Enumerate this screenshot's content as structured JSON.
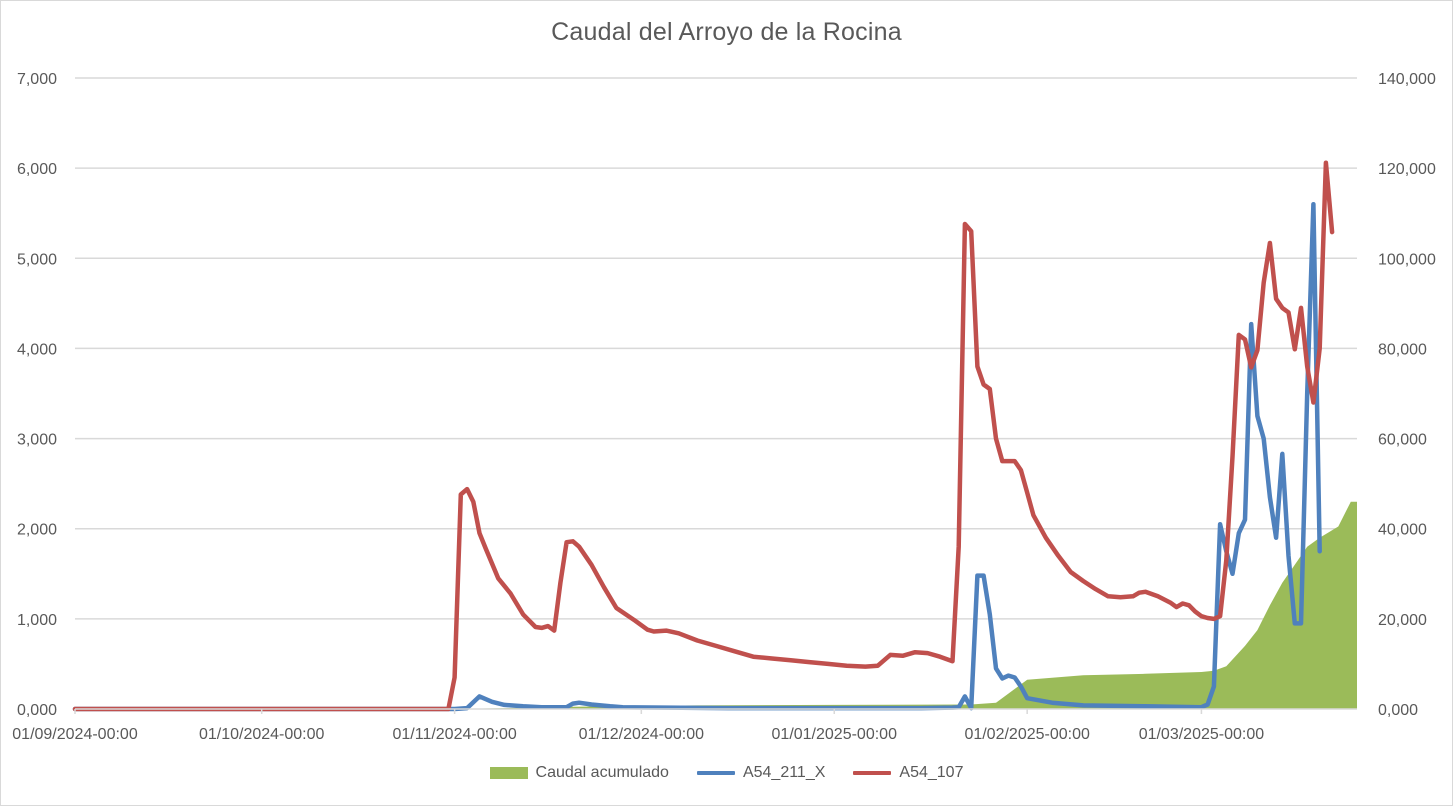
{
  "chart_data": {
    "type": "line",
    "title": "Caudal del Arroyo de la Rocina",
    "xlabel": "",
    "ylabel": "",
    "x_axis": {
      "start": "2024-09-01",
      "end": "2025-03-26",
      "tick_labels": [
        "01/09/2024-00:00",
        "01/10/2024-00:00",
        "01/11/2024-00:00",
        "01/12/2024-00:00",
        "01/01/2025-00:00",
        "01/02/2025-00:00",
        "01/03/2025-00:00"
      ]
    },
    "y_left": {
      "ylim": [
        0,
        7000
      ],
      "tick_labels": [
        "0,000",
        "1,000",
        "2,000",
        "3,000",
        "4,000",
        "5,000",
        "6,000",
        "7,000"
      ]
    },
    "y_right": {
      "ylim": [
        0,
        140000
      ],
      "tick_labels": [
        "0,000",
        "20,000",
        "40,000",
        "60,000",
        "80,000",
        "100,000",
        "120,000",
        "140,000"
      ]
    },
    "grid": true,
    "legend_position": "bottom",
    "series": [
      {
        "name": "Caudal acumulado",
        "kind": "area",
        "axis": "right",
        "color": "#9bbb59",
        "points": [
          [
            "2024-09-01",
            0
          ],
          [
            "2024-11-01",
            0
          ],
          [
            "2024-11-20",
            500
          ],
          [
            "2024-12-10",
            800
          ],
          [
            "2025-01-01",
            900
          ],
          [
            "2025-01-23",
            1000
          ],
          [
            "2025-01-27",
            1400
          ],
          [
            "2025-02-01",
            6500
          ],
          [
            "2025-02-10",
            7500
          ],
          [
            "2025-02-20",
            7800
          ],
          [
            "2025-03-01",
            8200
          ],
          [
            "2025-03-03",
            8500
          ],
          [
            "2025-03-05",
            9500
          ],
          [
            "2025-03-08",
            14000
          ],
          [
            "2025-03-10",
            17500
          ],
          [
            "2025-03-12",
            23000
          ],
          [
            "2025-03-14",
            28000
          ],
          [
            "2025-03-16",
            32000
          ],
          [
            "2025-03-18",
            36000
          ],
          [
            "2025-03-20",
            38000
          ],
          [
            "2025-03-23",
            40500
          ],
          [
            "2025-03-25",
            46000
          ],
          [
            "2025-03-26",
            46000
          ]
        ]
      },
      {
        "name": "A54_211_X",
        "kind": "line",
        "axis": "left",
        "color": "#4f81bd",
        "points": [
          [
            "2024-09-01",
            0
          ],
          [
            "2024-11-01",
            0
          ],
          [
            "2024-11-03",
            10
          ],
          [
            "2024-11-05",
            140
          ],
          [
            "2024-11-07",
            80
          ],
          [
            "2024-11-09",
            45
          ],
          [
            "2024-11-12",
            30
          ],
          [
            "2024-11-15",
            20
          ],
          [
            "2024-11-17",
            20
          ],
          [
            "2024-11-19",
            20
          ],
          [
            "2024-11-20",
            60
          ],
          [
            "2024-11-21",
            70
          ],
          [
            "2024-11-23",
            50
          ],
          [
            "2024-11-26",
            30
          ],
          [
            "2024-11-28",
            20
          ],
          [
            "2024-12-05",
            15
          ],
          [
            "2024-12-15",
            10
          ],
          [
            "2025-01-01",
            10
          ],
          [
            "2025-01-15",
            10
          ],
          [
            "2025-01-20",
            15
          ],
          [
            "2025-01-21",
            20
          ],
          [
            "2025-01-22",
            140
          ],
          [
            "2025-01-23",
            10
          ],
          [
            "2025-01-24",
            1480
          ],
          [
            "2025-01-25",
            1480
          ],
          [
            "2025-01-26",
            1050
          ],
          [
            "2025-01-27",
            450
          ],
          [
            "2025-01-28",
            340
          ],
          [
            "2025-01-29",
            370
          ],
          [
            "2025-01-30",
            350
          ],
          [
            "2025-01-31",
            250
          ],
          [
            "2025-02-01",
            120
          ],
          [
            "2025-02-05",
            70
          ],
          [
            "2025-02-10",
            40
          ],
          [
            "2025-02-20",
            30
          ],
          [
            "2025-03-01",
            20
          ],
          [
            "2025-03-02",
            50
          ],
          [
            "2025-03-03",
            250
          ],
          [
            "2025-03-04",
            2050
          ],
          [
            "2025-03-05",
            1750
          ],
          [
            "2025-03-06",
            1500
          ],
          [
            "2025-03-07",
            1950
          ],
          [
            "2025-03-08",
            2100
          ],
          [
            "2025-03-09",
            4270
          ],
          [
            "2025-03-10",
            3250
          ],
          [
            "2025-03-11",
            3000
          ],
          [
            "2025-03-12",
            2350
          ],
          [
            "2025-03-13",
            1900
          ],
          [
            "2025-03-14",
            2830
          ],
          [
            "2025-03-15",
            1700
          ],
          [
            "2025-03-16",
            950
          ],
          [
            "2025-03-17",
            950
          ],
          [
            "2025-03-18",
            3500
          ],
          [
            "2025-03-19",
            5600
          ],
          [
            "2025-03-20",
            1750
          ]
        ]
      },
      {
        "name": "A54_107",
        "kind": "line",
        "axis": "left",
        "color": "#c0504d",
        "points": [
          [
            "2024-09-01",
            0
          ],
          [
            "2024-10-31",
            0
          ],
          [
            "2024-11-01",
            350
          ],
          [
            "2024-11-02",
            2380
          ],
          [
            "2024-11-03",
            2440
          ],
          [
            "2024-11-04",
            2300
          ],
          [
            "2024-11-05",
            1950
          ],
          [
            "2024-11-06",
            1780
          ],
          [
            "2024-11-08",
            1450
          ],
          [
            "2024-11-10",
            1280
          ],
          [
            "2024-11-12",
            1050
          ],
          [
            "2024-11-14",
            910
          ],
          [
            "2024-11-15",
            900
          ],
          [
            "2024-11-16",
            920
          ],
          [
            "2024-11-17",
            870
          ],
          [
            "2024-11-18",
            1400
          ],
          [
            "2024-11-19",
            1850
          ],
          [
            "2024-11-20",
            1860
          ],
          [
            "2024-11-21",
            1800
          ],
          [
            "2024-11-23",
            1600
          ],
          [
            "2024-11-25",
            1350
          ],
          [
            "2024-11-27",
            1120
          ],
          [
            "2024-11-30",
            980
          ],
          [
            "2024-12-02",
            880
          ],
          [
            "2024-12-03",
            860
          ],
          [
            "2024-12-05",
            870
          ],
          [
            "2024-12-07",
            840
          ],
          [
            "2024-12-10",
            760
          ],
          [
            "2024-12-13",
            700
          ],
          [
            "2024-12-16",
            640
          ],
          [
            "2024-12-19",
            580
          ],
          [
            "2024-12-22",
            560
          ],
          [
            "2024-12-25",
            540
          ],
          [
            "2024-12-28",
            520
          ],
          [
            "2024-12-31",
            500
          ],
          [
            "2025-01-03",
            480
          ],
          [
            "2025-01-06",
            470
          ],
          [
            "2025-01-08",
            480
          ],
          [
            "2025-01-10",
            600
          ],
          [
            "2025-01-12",
            590
          ],
          [
            "2025-01-14",
            630
          ],
          [
            "2025-01-16",
            620
          ],
          [
            "2025-01-18",
            580
          ],
          [
            "2025-01-20",
            530
          ],
          [
            "2025-01-21",
            1800
          ],
          [
            "2025-01-22",
            5380
          ],
          [
            "2025-01-23",
            5300
          ],
          [
            "2025-01-24",
            3800
          ],
          [
            "2025-01-25",
            3600
          ],
          [
            "2025-01-26",
            3550
          ],
          [
            "2025-01-27",
            3000
          ],
          [
            "2025-01-28",
            2750
          ],
          [
            "2025-01-29",
            2750
          ],
          [
            "2025-01-30",
            2750
          ],
          [
            "2025-01-31",
            2650
          ],
          [
            "2025-02-01",
            2400
          ],
          [
            "2025-02-02",
            2150
          ],
          [
            "2025-02-04",
            1900
          ],
          [
            "2025-02-06",
            1700
          ],
          [
            "2025-02-08",
            1520
          ],
          [
            "2025-02-10",
            1420
          ],
          [
            "2025-02-12",
            1330
          ],
          [
            "2025-02-14",
            1250
          ],
          [
            "2025-02-16",
            1240
          ],
          [
            "2025-02-18",
            1250
          ],
          [
            "2025-02-19",
            1290
          ],
          [
            "2025-02-20",
            1300
          ],
          [
            "2025-02-22",
            1250
          ],
          [
            "2025-02-24",
            1180
          ],
          [
            "2025-02-25",
            1130
          ],
          [
            "2025-02-26",
            1170
          ],
          [
            "2025-02-27",
            1150
          ],
          [
            "2025-02-28",
            1080
          ],
          [
            "2025-03-01",
            1030
          ],
          [
            "2025-03-02",
            1010
          ],
          [
            "2025-03-03",
            1000
          ],
          [
            "2025-03-04",
            1030
          ],
          [
            "2025-03-05",
            1650
          ],
          [
            "2025-03-06",
            2800
          ],
          [
            "2025-03-07",
            4150
          ],
          [
            "2025-03-08",
            4100
          ],
          [
            "2025-03-09",
            3790
          ],
          [
            "2025-03-10",
            3980
          ],
          [
            "2025-03-11",
            4730
          ],
          [
            "2025-03-12",
            5170
          ],
          [
            "2025-03-13",
            4550
          ],
          [
            "2025-03-14",
            4450
          ],
          [
            "2025-03-15",
            4400
          ],
          [
            "2025-03-16",
            3990
          ],
          [
            "2025-03-17",
            4450
          ],
          [
            "2025-03-18",
            3800
          ],
          [
            "2025-03-19",
            3400
          ],
          [
            "2025-03-20",
            4000
          ],
          [
            "2025-03-21",
            6060
          ],
          [
            "2025-03-22",
            5290
          ]
        ]
      }
    ]
  }
}
